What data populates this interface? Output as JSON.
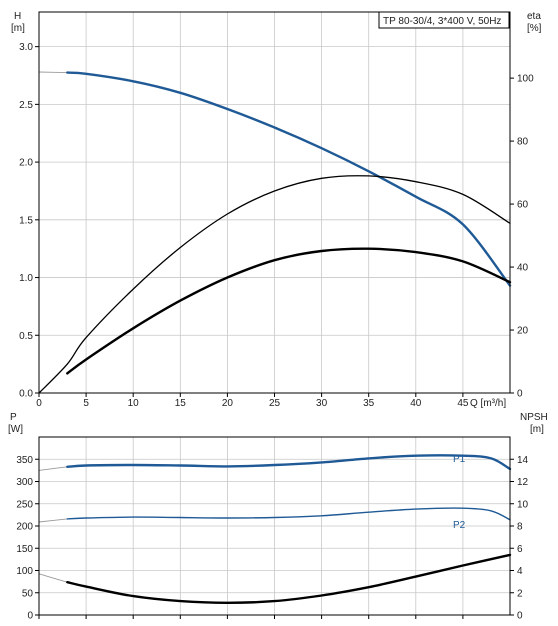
{
  "title": "TP 80-30/4, 3*400 V, 50Hz",
  "colors": {
    "primary": "#1f5a96",
    "black": "#000000",
    "grid": "#c8c8c8",
    "extension": "#9a9a9a"
  },
  "chart_data": [
    {
      "type": "line",
      "name": "head-and-efficiency",
      "xlabel": "Q [m³/h]",
      "x_ticks": [
        "0",
        "5",
        "10",
        "15",
        "20",
        "25",
        "30",
        "35",
        "40",
        "45"
      ],
      "xlim": [
        0,
        50
      ],
      "left_axis": {
        "label_line1": "H",
        "label_line2": "[m]",
        "ylim": [
          0,
          3.3
        ],
        "ticks": [
          "0.0",
          "0.5",
          "1.0",
          "1.5",
          "2.0",
          "2.5",
          "3.0"
        ]
      },
      "right_axis": {
        "label_line1": "eta",
        "label_line2": "[%]",
        "ylim": [
          0,
          121
        ],
        "ticks": [
          "0",
          "20",
          "40",
          "60",
          "80",
          "100"
        ]
      },
      "grid": true,
      "series": [
        {
          "axis": "left",
          "color": "#1f5a96",
          "width": 2.4,
          "start": 3,
          "x": [
            0,
            3,
            5,
            10,
            15,
            20,
            25,
            30,
            35,
            40,
            45,
            50
          ],
          "y": [
            2.78,
            2.775,
            2.765,
            2.7,
            2.6,
            2.46,
            2.3,
            2.12,
            1.92,
            1.7,
            1.46,
            0.93
          ]
        },
        {
          "axis": "left",
          "color": "#000000",
          "width": 1.3,
          "start": 0,
          "x": [
            0,
            3,
            5,
            10,
            15,
            20,
            25,
            30,
            35,
            40,
            45,
            50
          ],
          "y": [
            0,
            0.25,
            0.48,
            0.9,
            1.26,
            1.55,
            1.75,
            1.86,
            1.88,
            1.83,
            1.72,
            1.47
          ]
        },
        {
          "axis": "left",
          "color": "#000000",
          "width": 2.4,
          "start": 3,
          "x": [
            3,
            5,
            10,
            15,
            20,
            25,
            30,
            35,
            40,
            45,
            50
          ],
          "y": [
            0.17,
            0.29,
            0.56,
            0.8,
            1.0,
            1.15,
            1.23,
            1.25,
            1.22,
            1.14,
            0.96
          ]
        }
      ]
    },
    {
      "type": "line",
      "name": "power-and-npsh",
      "left_axis": {
        "label_line1": "P",
        "label_line2": "[W]",
        "ylim": [
          0,
          400
        ],
        "ticks": [
          "0",
          "50",
          "100",
          "150",
          "200",
          "250",
          "300",
          "350"
        ]
      },
      "right_axis": {
        "label_line1": "NPSH",
        "label_line2": "[m]",
        "ylim": [
          0,
          16
        ],
        "ticks": [
          "0",
          "2",
          "4",
          "6",
          "8",
          "10",
          "12",
          "14"
        ]
      },
      "grid": true,
      "series": [
        {
          "name": "P1",
          "axis": "left",
          "color": "#1f5a96",
          "width": 2.4,
          "start": 3,
          "x": [
            0,
            3,
            5,
            10,
            15,
            20,
            25,
            30,
            35,
            40,
            45,
            48,
            50
          ],
          "y": [
            325,
            333,
            336,
            337,
            336,
            334,
            337,
            343,
            352,
            358,
            358,
            352,
            328
          ]
        },
        {
          "name": "P2",
          "axis": "left",
          "color": "#1f5a96",
          "width": 1.4,
          "start": 3,
          "x": [
            0,
            3,
            5,
            10,
            15,
            20,
            25,
            30,
            35,
            40,
            45,
            48,
            50
          ],
          "y": [
            209,
            216,
            218,
            220,
            219,
            218,
            219,
            223,
            231,
            238,
            240,
            234,
            214
          ]
        },
        {
          "axis": "right",
          "color": "#000000",
          "width": 2.4,
          "start": 3,
          "x": [
            0,
            3,
            5,
            10,
            15,
            20,
            25,
            30,
            35,
            40,
            45,
            50
          ],
          "y": [
            3.7,
            2.95,
            2.55,
            1.7,
            1.25,
            1.1,
            1.25,
            1.75,
            2.5,
            3.45,
            4.45,
            5.4
          ]
        }
      ]
    }
  ]
}
